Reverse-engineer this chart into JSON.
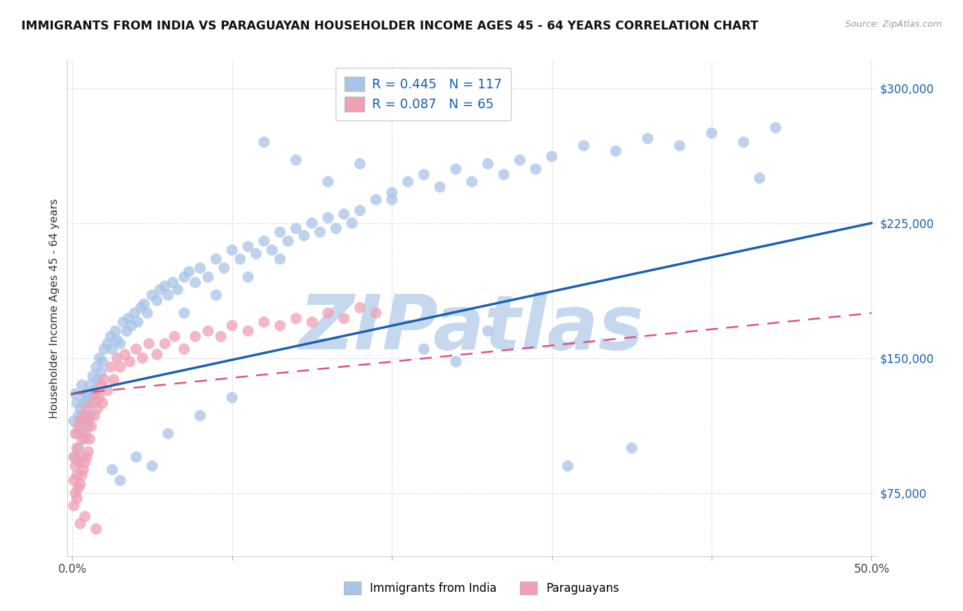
{
  "title": "IMMIGRANTS FROM INDIA VS PARAGUAYAN HOUSEHOLDER INCOME AGES 45 - 64 YEARS CORRELATION CHART",
  "source": "Source: ZipAtlas.com",
  "ylabel": "Householder Income Ages 45 - 64 years",
  "xlim": [
    -0.003,
    0.503
  ],
  "ylim": [
    40000,
    315000
  ],
  "xticks": [
    0.0,
    0.1,
    0.2,
    0.3,
    0.4,
    0.5
  ],
  "xticklabels": [
    "0.0%",
    "",
    "",
    "",
    "",
    "50.0%"
  ],
  "yticks": [
    75000,
    150000,
    225000,
    300000
  ],
  "yticklabels": [
    "$75,000",
    "$150,000",
    "$225,000",
    "$300,000"
  ],
  "blue_R": 0.445,
  "blue_N": 117,
  "pink_R": 0.087,
  "pink_N": 65,
  "blue_color": "#a8c4e8",
  "pink_color": "#f0a0b5",
  "blue_line_color": "#1a5fb0",
  "pink_line_color": "#e0507a",
  "grid_color": "#dddddd",
  "watermark": "ZIPatlas",
  "watermark_color": "#c5d8ee",
  "legend_label_blue": "Immigrants from India",
  "legend_label_pink": "Paraguayans",
  "blue_line_y0": 130000,
  "blue_line_y1": 225000,
  "pink_line_y0": 130000,
  "pink_line_y1": 175000,
  "blue_points_x": [
    0.001,
    0.002,
    0.002,
    0.003,
    0.003,
    0.004,
    0.004,
    0.005,
    0.005,
    0.006,
    0.006,
    0.007,
    0.007,
    0.008,
    0.008,
    0.009,
    0.009,
    0.01,
    0.01,
    0.011,
    0.011,
    0.012,
    0.013,
    0.014,
    0.015,
    0.016,
    0.017,
    0.018,
    0.019,
    0.02,
    0.022,
    0.024,
    0.025,
    0.027,
    0.028,
    0.03,
    0.032,
    0.034,
    0.035,
    0.037,
    0.039,
    0.041,
    0.043,
    0.045,
    0.047,
    0.05,
    0.053,
    0.055,
    0.058,
    0.06,
    0.063,
    0.066,
    0.07,
    0.073,
    0.077,
    0.08,
    0.085,
    0.09,
    0.095,
    0.1,
    0.105,
    0.11,
    0.115,
    0.12,
    0.125,
    0.13,
    0.135,
    0.14,
    0.145,
    0.15,
    0.155,
    0.16,
    0.165,
    0.17,
    0.175,
    0.18,
    0.19,
    0.2,
    0.21,
    0.22,
    0.23,
    0.24,
    0.25,
    0.26,
    0.27,
    0.28,
    0.29,
    0.3,
    0.32,
    0.34,
    0.36,
    0.38,
    0.4,
    0.42,
    0.44,
    0.025,
    0.04,
    0.06,
    0.08,
    0.1,
    0.12,
    0.14,
    0.16,
    0.18,
    0.2,
    0.22,
    0.24,
    0.26,
    0.03,
    0.05,
    0.07,
    0.09,
    0.11,
    0.13,
    0.31,
    0.35,
    0.43
  ],
  "blue_points_y": [
    115000,
    130000,
    95000,
    108000,
    125000,
    118000,
    100000,
    122000,
    112000,
    135000,
    108000,
    125000,
    118000,
    130000,
    105000,
    118000,
    128000,
    112000,
    125000,
    135000,
    118000,
    128000,
    140000,
    132000,
    145000,
    138000,
    150000,
    142000,
    148000,
    155000,
    158000,
    162000,
    155000,
    165000,
    160000,
    158000,
    170000,
    165000,
    172000,
    168000,
    175000,
    170000,
    178000,
    180000,
    175000,
    185000,
    182000,
    188000,
    190000,
    185000,
    192000,
    188000,
    195000,
    198000,
    192000,
    200000,
    195000,
    205000,
    200000,
    210000,
    205000,
    212000,
    208000,
    215000,
    210000,
    220000,
    215000,
    222000,
    218000,
    225000,
    220000,
    228000,
    222000,
    230000,
    225000,
    232000,
    238000,
    242000,
    248000,
    252000,
    245000,
    255000,
    248000,
    258000,
    252000,
    260000,
    255000,
    262000,
    268000,
    265000,
    272000,
    268000,
    275000,
    270000,
    278000,
    88000,
    95000,
    108000,
    118000,
    128000,
    270000,
    260000,
    248000,
    258000,
    238000,
    155000,
    148000,
    165000,
    82000,
    90000,
    175000,
    185000,
    195000,
    205000,
    90000,
    100000,
    250000
  ],
  "pink_points_x": [
    0.001,
    0.001,
    0.001,
    0.002,
    0.002,
    0.002,
    0.003,
    0.003,
    0.003,
    0.004,
    0.004,
    0.004,
    0.005,
    0.005,
    0.005,
    0.006,
    0.006,
    0.007,
    0.007,
    0.008,
    0.008,
    0.009,
    0.009,
    0.01,
    0.01,
    0.011,
    0.012,
    0.013,
    0.014,
    0.015,
    0.016,
    0.017,
    0.018,
    0.019,
    0.02,
    0.022,
    0.024,
    0.026,
    0.028,
    0.03,
    0.033,
    0.036,
    0.04,
    0.044,
    0.048,
    0.053,
    0.058,
    0.064,
    0.07,
    0.077,
    0.085,
    0.093,
    0.1,
    0.11,
    0.12,
    0.13,
    0.14,
    0.15,
    0.16,
    0.17,
    0.18,
    0.19,
    0.005,
    0.008,
    0.015
  ],
  "pink_points_y": [
    68000,
    82000,
    95000,
    75000,
    90000,
    108000,
    72000,
    85000,
    100000,
    78000,
    92000,
    112000,
    80000,
    95000,
    115000,
    85000,
    105000,
    88000,
    118000,
    92000,
    108000,
    95000,
    122000,
    98000,
    115000,
    105000,
    112000,
    125000,
    118000,
    130000,
    122000,
    128000,
    135000,
    125000,
    138000,
    132000,
    145000,
    138000,
    150000,
    145000,
    152000,
    148000,
    155000,
    150000,
    158000,
    152000,
    158000,
    162000,
    155000,
    162000,
    165000,
    162000,
    168000,
    165000,
    170000,
    168000,
    172000,
    170000,
    175000,
    172000,
    178000,
    175000,
    58000,
    62000,
    55000
  ]
}
